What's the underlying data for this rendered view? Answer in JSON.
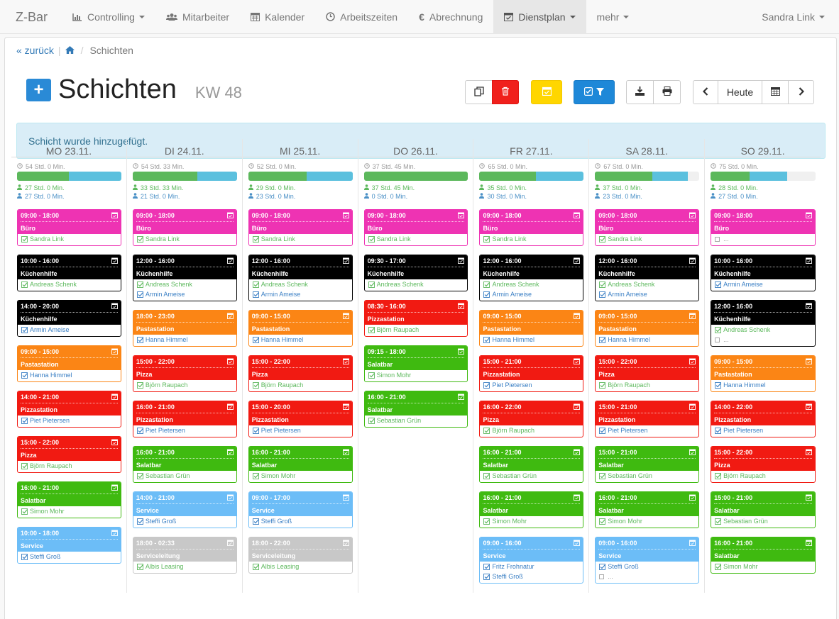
{
  "nav": {
    "brand": "Z-Bar",
    "items": [
      {
        "label": "Controlling",
        "icon": "bar-chart-icon",
        "caret": true
      },
      {
        "label": "Mitarbeiter",
        "icon": "users-icon",
        "caret": false
      },
      {
        "label": "Kalender",
        "icon": "calendar-icon",
        "caret": false
      },
      {
        "label": "Arbeitszeiten",
        "icon": "clock-icon",
        "caret": false
      },
      {
        "label": "Abrechnung",
        "icon": "euro-icon",
        "caret": false
      },
      {
        "label": "Dienstplan",
        "icon": "calendar-check-icon",
        "caret": true,
        "active": true
      },
      {
        "label": "mehr",
        "icon": "",
        "caret": true
      }
    ],
    "user": "Sandra Link"
  },
  "breadcrumb": {
    "back": "« zurück",
    "current": "Schichten"
  },
  "header": {
    "title": "Schichten",
    "week": "KW 48",
    "add_label": "+"
  },
  "toolbar": {
    "today_label": "Heute"
  },
  "alert": "Schicht wurde hinzugefügt.",
  "colors": {
    "pink": "#ee33b3",
    "black": "#000000",
    "orange": "#fb8515",
    "red": "#f11a12",
    "green": "#3fba10",
    "lightblue": "#6cbdf7",
    "gray": "#c8c8c8",
    "progress_green": "#5cb85c",
    "progress_blue": "#5bc0de"
  },
  "days": [
    {
      "label": "MO 23.11.",
      "total": "54 Std. 0 Min.",
      "green_pct": 50,
      "blue_pct": 50,
      "green": "27 Std. 0 Min.",
      "blue": "27 Std. 0 Min.",
      "shifts": [
        {
          "time": "09:00 - 18:00",
          "role": "Büro",
          "color": "pink",
          "employees": [
            {
              "name": "Sandra Link"
            }
          ]
        },
        {
          "time": "10:00 - 16:00",
          "role": "Küchenhilfe",
          "color": "black",
          "employees": [
            {
              "name": "Andreas Schenk"
            }
          ]
        },
        {
          "time": "14:00 - 20:00",
          "role": "Küchenhilfe",
          "color": "black",
          "employees": [
            {
              "name": "Armin Ameise"
            }
          ]
        },
        {
          "time": "09:00 - 15:00",
          "role": "Pastastation",
          "color": "orange",
          "employees": [
            {
              "name": "Hanna Himmel"
            }
          ]
        },
        {
          "time": "14:00 - 21:00",
          "role": "Pizzastation",
          "color": "red",
          "employees": [
            {
              "name": "Piet Pietersen"
            }
          ]
        },
        {
          "time": "15:00 - 22:00",
          "role": "Pizza",
          "color": "red",
          "employees": [
            {
              "name": "Björn Raupach"
            }
          ]
        },
        {
          "time": "16:00 - 21:00",
          "role": "Salatbar",
          "color": "green",
          "employees": [
            {
              "name": "Simon Mohr"
            }
          ]
        },
        {
          "time": "10:00 - 18:00",
          "role": "Service",
          "color": "lightblue",
          "employees": [
            {
              "name": "Steffi Groß"
            }
          ]
        }
      ]
    },
    {
      "label": "DI 24.11.",
      "total": "54 Std. 33 Min.",
      "green_pct": 62,
      "blue_pct": 38,
      "green": "33 Std. 33 Min.",
      "blue": "21 Std. 0 Min.",
      "shifts": [
        {
          "time": "09:00 - 18:00",
          "role": "Büro",
          "color": "pink",
          "employees": [
            {
              "name": "Sandra Link"
            }
          ]
        },
        {
          "time": "12:00 - 16:00",
          "role": "Küchenhilfe",
          "color": "black",
          "employees": [
            {
              "name": "Andreas Schenk"
            },
            {
              "name": "Armin Ameise"
            }
          ]
        },
        {
          "time": "18:00 - 23:00",
          "role": "Pastastation",
          "color": "orange",
          "employees": [
            {
              "name": "Hanna Himmel"
            }
          ]
        },
        {
          "time": "15:00 - 22:00",
          "role": "Pizza",
          "color": "red",
          "employees": [
            {
              "name": "Björn Raupach"
            }
          ]
        },
        {
          "time": "16:00 - 21:00",
          "role": "Pizzastation",
          "color": "red",
          "employees": [
            {
              "name": "Piet Pietersen"
            }
          ]
        },
        {
          "time": "16:00 - 21:00",
          "role": "Salatbar",
          "color": "green",
          "employees": [
            {
              "name": "Sebastian Grün"
            }
          ]
        },
        {
          "time": "14:00 - 21:00",
          "role": "Service",
          "color": "lightblue",
          "employees": [
            {
              "name": "Steffi Groß"
            }
          ]
        },
        {
          "time": "18:00 - 02:33",
          "role": "Serviceleitung",
          "color": "gray",
          "employees": [
            {
              "name": "Albis Leasing"
            }
          ]
        }
      ]
    },
    {
      "label": "MI 25.11.",
      "total": "52 Std. 0 Min.",
      "green_pct": 56,
      "blue_pct": 44,
      "green": "29 Std. 0 Min.",
      "blue": "23 Std. 0 Min.",
      "shifts": [
        {
          "time": "09:00 - 18:00",
          "role": "Büro",
          "color": "pink",
          "employees": [
            {
              "name": "Sandra Link"
            }
          ]
        },
        {
          "time": "12:00 - 16:00",
          "role": "Küchenhilfe",
          "color": "black",
          "employees": [
            {
              "name": "Andreas Schenk"
            },
            {
              "name": "Armin Ameise"
            }
          ]
        },
        {
          "time": "09:00 - 15:00",
          "role": "Pastastation",
          "color": "orange",
          "employees": [
            {
              "name": "Hanna Himmel"
            }
          ]
        },
        {
          "time": "15:00 - 22:00",
          "role": "Pizza",
          "color": "red",
          "employees": [
            {
              "name": "Björn Raupach"
            }
          ]
        },
        {
          "time": "15:00 - 20:00",
          "role": "Pizzastation",
          "color": "red",
          "employees": [
            {
              "name": "Piet Pietersen"
            }
          ]
        },
        {
          "time": "16:00 - 21:00",
          "role": "Salatbar",
          "color": "green",
          "employees": [
            {
              "name": "Simon Mohr"
            }
          ]
        },
        {
          "time": "09:00 - 17:00",
          "role": "Service",
          "color": "lightblue",
          "employees": [
            {
              "name": "Steffi Groß"
            }
          ]
        },
        {
          "time": "18:00 - 22:00",
          "role": "Serviceleitung",
          "color": "gray",
          "employees": [
            {
              "name": "Albis Leasing"
            }
          ]
        }
      ]
    },
    {
      "label": "DO 26.11.",
      "total": "37 Std. 45 Min.",
      "green_pct": 100,
      "blue_pct": 0,
      "green": "37 Std. 45 Min.",
      "blue": "0 Std. 0 Min.",
      "shifts": [
        {
          "time": "09:00 - 18:00",
          "role": "Büro",
          "color": "pink",
          "employees": [
            {
              "name": "Sandra Link"
            }
          ]
        },
        {
          "time": "09:30 - 17:00",
          "role": "Küchenhilfe",
          "color": "black",
          "employees": [
            {
              "name": "Andreas Schenk"
            }
          ]
        },
        {
          "time": "08:30 - 16:00",
          "role": "Pizzastation",
          "color": "red",
          "employees": [
            {
              "name": "Björn Raupach"
            }
          ]
        },
        {
          "time": "09:15 - 18:00",
          "role": "Salatbar",
          "color": "green",
          "employees": [
            {
              "name": "Simon Mohr"
            }
          ]
        },
        {
          "time": "16:00 - 21:00",
          "role": "Salatbar",
          "color": "green",
          "employees": [
            {
              "name": "Sebastian Grün"
            }
          ]
        }
      ]
    },
    {
      "label": "FR 27.11.",
      "total": "65 Std. 0 Min.",
      "green_pct": 54,
      "blue_pct": 46,
      "green": "35 Std. 0 Min.",
      "blue": "30 Std. 0 Min.",
      "shifts": [
        {
          "time": "09:00 - 18:00",
          "role": "Büro",
          "color": "pink",
          "employees": [
            {
              "name": "Sandra Link"
            }
          ]
        },
        {
          "time": "12:00 - 16:00",
          "role": "Küchenhilfe",
          "color": "black",
          "employees": [
            {
              "name": "Andreas Schenk"
            },
            {
              "name": "Armin Ameise"
            }
          ]
        },
        {
          "time": "09:00 - 15:00",
          "role": "Pastastation",
          "color": "orange",
          "employees": [
            {
              "name": "Hanna Himmel"
            }
          ]
        },
        {
          "time": "15:00 - 21:00",
          "role": "Pizzastation",
          "color": "red",
          "employees": [
            {
              "name": "Piet Pietersen"
            }
          ]
        },
        {
          "time": "16:00 - 22:00",
          "role": "Pizza",
          "color": "red",
          "employees": [
            {
              "name": "Björn Raupach"
            }
          ]
        },
        {
          "time": "16:00 - 21:00",
          "role": "Salatbar",
          "color": "green",
          "employees": [
            {
              "name": "Sebastian Grün"
            }
          ]
        },
        {
          "time": "16:00 - 21:00",
          "role": "Salatbar",
          "color": "green",
          "employees": [
            {
              "name": "Simon Mohr"
            }
          ]
        },
        {
          "time": "09:00 - 16:00",
          "role": "Service",
          "color": "lightblue",
          "employees": [
            {
              "name": "Fritz Frohnatur"
            },
            {
              "name": "Steffi Groß"
            }
          ]
        }
      ]
    },
    {
      "label": "SA 28.11.",
      "total": "67 Std. 0 Min.",
      "green_pct": 55,
      "blue_pct": 34,
      "green": "37 Std. 0 Min.",
      "blue": "23 Std. 0 Min.",
      "shifts": [
        {
          "time": "09:00 - 18:00",
          "role": "Büro",
          "color": "pink",
          "employees": [
            {
              "name": "Sandra Link"
            }
          ]
        },
        {
          "time": "12:00 - 16:00",
          "role": "Küchenhilfe",
          "color": "black",
          "employees": [
            {
              "name": "Andreas Schenk"
            },
            {
              "name": "Armin Ameise"
            }
          ]
        },
        {
          "time": "09:00 - 15:00",
          "role": "Pastastation",
          "color": "orange",
          "employees": [
            {
              "name": "Hanna Himmel"
            }
          ]
        },
        {
          "time": "15:00 - 22:00",
          "role": "Pizza",
          "color": "red",
          "employees": [
            {
              "name": "Björn Raupach"
            }
          ]
        },
        {
          "time": "15:00 - 21:00",
          "role": "Pizzastation",
          "color": "red",
          "employees": [
            {
              "name": "Piet Pietersen"
            }
          ]
        },
        {
          "time": "15:00 - 21:00",
          "role": "Salatbar",
          "color": "green",
          "employees": [
            {
              "name": "Sebastian Grün"
            }
          ]
        },
        {
          "time": "16:00 - 21:00",
          "role": "Salatbar",
          "color": "green",
          "employees": [
            {
              "name": "Simon Mohr"
            }
          ]
        },
        {
          "time": "09:00 - 16:00",
          "role": "Service",
          "color": "lightblue",
          "employees": [
            {
              "name": "Steffi Groß"
            },
            {
              "name": "...",
              "pending": true
            }
          ]
        }
      ]
    },
    {
      "label": "SO 29.11.",
      "total": "75 Std. 0 Min.",
      "green_pct": 37,
      "blue_pct": 36,
      "green": "28 Std. 0 Min.",
      "blue": "27 Std. 0 Min.",
      "shifts": [
        {
          "time": "09:00 - 18:00",
          "role": "Büro",
          "color": "pink",
          "employees": [
            {
              "name": "...",
              "pending": true
            }
          ]
        },
        {
          "time": "10:00 - 16:00",
          "role": "Küchenhilfe",
          "color": "black",
          "employees": [
            {
              "name": "Armin Ameise"
            }
          ]
        },
        {
          "time": "12:00 - 16:00",
          "role": "Küchenhilfe",
          "color": "black",
          "employees": [
            {
              "name": "Andreas Schenk"
            },
            {
              "name": "...",
              "pending": true
            }
          ]
        },
        {
          "time": "09:00 - 15:00",
          "role": "Pastastation",
          "color": "orange",
          "employees": [
            {
              "name": "Hanna Himmel"
            }
          ]
        },
        {
          "time": "14:00 - 22:00",
          "role": "Pizzastation",
          "color": "red",
          "employees": [
            {
              "name": "Piet Pietersen"
            }
          ]
        },
        {
          "time": "15:00 - 22:00",
          "role": "Pizza",
          "color": "red",
          "employees": [
            {
              "name": "Björn Raupach"
            }
          ]
        },
        {
          "time": "15:00 - 21:00",
          "role": "Salatbar",
          "color": "green",
          "employees": [
            {
              "name": "Sebastian Grün"
            }
          ]
        },
        {
          "time": "16:00 - 21:00",
          "role": "Salatbar",
          "color": "green",
          "employees": [
            {
              "name": "Simon Mohr"
            }
          ]
        }
      ]
    }
  ]
}
